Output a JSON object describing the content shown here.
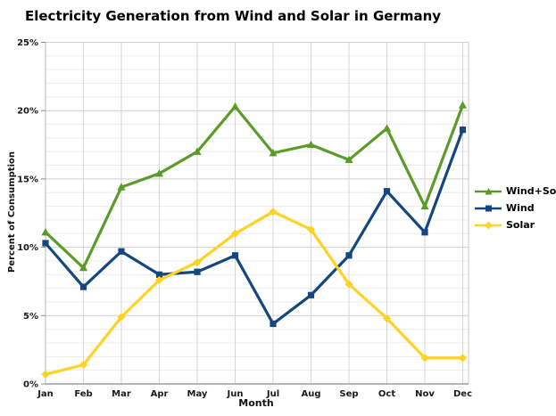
{
  "chart_data": {
    "type": "line",
    "title": "Electricity Generation from Wind and Solar in Germany",
    "xlabel": "Month",
    "ylabel": "Percent of Consumption",
    "ylim": [
      0,
      25
    ],
    "y_major_tick_step": 5,
    "y_minor_grid_step": 1,
    "y_tick_labels": [
      "0%",
      "5%",
      "10%",
      "15%",
      "20%",
      "25%"
    ],
    "grid": true,
    "legend_position": "right",
    "categories": [
      "Jan",
      "Feb",
      "Mar",
      "Apr",
      "May",
      "Jun",
      "Jul",
      "Aug",
      "Sep",
      "Oct",
      "Nov",
      "Dec"
    ],
    "series": [
      {
        "name": "Wind+Solar",
        "color": "#5B9B28",
        "marker": "triangle",
        "values": [
          11.1,
          8.5,
          14.4,
          15.4,
          17.0,
          20.3,
          16.9,
          17.5,
          16.4,
          18.7,
          13.0,
          20.4
        ]
      },
      {
        "name": "Wind",
        "color": "#14477D",
        "marker": "square",
        "values": [
          10.3,
          7.1,
          9.7,
          8.0,
          8.2,
          9.4,
          4.4,
          6.5,
          9.4,
          14.1,
          11.1,
          18.6
        ]
      },
      {
        "name": "Solar",
        "color": "#FFD224",
        "marker": "diamond",
        "values": [
          0.7,
          1.4,
          4.9,
          7.6,
          8.9,
          11.0,
          12.6,
          11.3,
          7.3,
          4.8,
          1.9,
          1.9
        ]
      }
    ]
  }
}
